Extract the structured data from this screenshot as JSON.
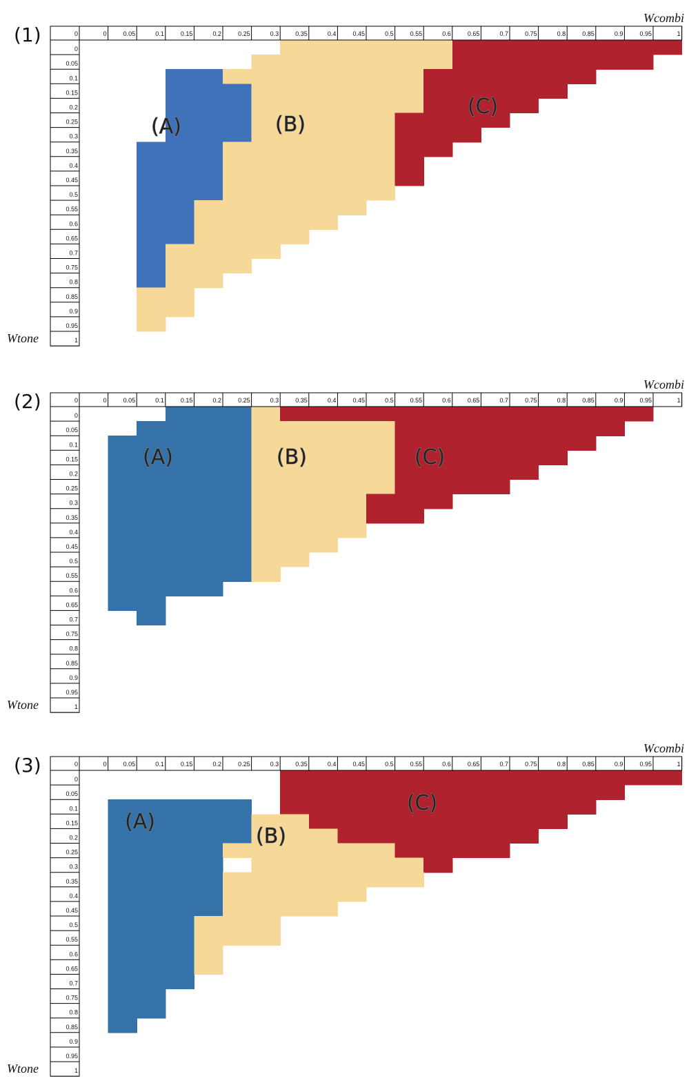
{
  "chart_data": [
    {
      "type": "heatmap",
      "title": "(1)",
      "xlabel": "Wcombi",
      "ylabel": "Wtone",
      "x_ticks": [
        "0",
        "0",
        "0.05",
        "0.1",
        "0.15",
        "0.2",
        "0.25",
        "0.3",
        "0.35",
        "0.4",
        "0.45",
        "0.5",
        "0.55",
        "0.6",
        "0.65",
        "0.7",
        "0.75",
        "0.8",
        "0.85",
        "0.9",
        "0.95",
        "1"
      ],
      "y_ticks": [
        "0",
        "0.05",
        "0.1",
        "0.15",
        "0.2",
        "0.25",
        "0.3",
        "0.35",
        "0.4",
        "0.45",
        "0.5",
        "0.55",
        "0.6",
        "0.65",
        "0.7",
        "0.75",
        "0.8",
        "0.85",
        "0.9",
        "0.95",
        "1"
      ],
      "region_labels": [
        "(A)",
        "(B)",
        "(C)"
      ],
      "region_colors": {
        "A": "#3f72b8",
        "B": "#f6d998",
        "C": "#b0232e"
      },
      "rows": [
        "       BBBBBBCCCCCCCC",
        "      BBBBBBBCCCCCCC ",
        "   AABBBBBBBCCCCCC   ",
        "   AAABBBBBBCCCCC    ",
        "   AAABBBBBBCCCC     ",
        "   AAABBBBBCCCC      ",
        "   AAABBBBBCCC       ",
        "  AAABBBBBBCC        ",
        "  AAABBBBBBC         ",
        "  AAABBBBBBC         ",
        "  AAABBBBBB          ",
        "  AABBBBBB           ",
        "  AABBBBB            ",
        "  AABBBB             ",
        "  ABBBB              ",
        "  ABBB               ",
        "  ABB                ",
        "  BB                 ",
        "  BB                 ",
        "  B                  ",
        "                     "
      ]
    },
    {
      "type": "heatmap",
      "title": "(2)",
      "xlabel": "Wcombi",
      "ylabel": "Wtone",
      "x_ticks": [
        "0",
        "0",
        "0.05",
        "0.1",
        "0.15",
        "0.2",
        "0.25",
        "0.3",
        "0.35",
        "0.4",
        "0.45",
        "0.5",
        "0.55",
        "0.6",
        "0.65",
        "0.7",
        "0.75",
        "0.8",
        "0.85",
        "0.9",
        "0.95",
        "1"
      ],
      "y_ticks": [
        "0",
        "0.05",
        "0.1",
        "0.15",
        "0.2",
        "0.25",
        "0.3",
        "0.35",
        "0.4",
        "0.45",
        "0.5",
        "0.55",
        "0.6",
        "0.65",
        "0.7",
        "0.75",
        "0.8",
        "0.85",
        "0.9",
        "0.95",
        "1"
      ],
      "region_labels": [
        "(A)",
        "(B)",
        "(C)"
      ],
      "region_colors": {
        "A": "#3472a9",
        "B": "#f6d998",
        "C": "#b0232e"
      },
      "rows": [
        "   AAABCCCCCCCCCCCCC ",
        "  AAAABBBBBCCCCCCCC  ",
        " AAAAABBBBBCCCCCCC   ",
        " AAAAABBBBBCCCCCC    ",
        " AAAAABBBBBCCCCC     ",
        " AAAAABBBBBCCCC      ",
        " AAAAABBBBCCC        ",
        " AAAAABBBBCC         ",
        " AAAAABBBB           ",
        " AAAAABBB            ",
        " AAAAABB             ",
        " AAAAAB              ",
        " AAAA                ",
        " AA                  ",
        "  A                  ",
        "                     ",
        "                     ",
        "                     ",
        "                     ",
        "                     ",
        "                     "
      ]
    },
    {
      "type": "heatmap",
      "title": "(3)",
      "xlabel": "Wcombi",
      "ylabel": "Wtone",
      "x_ticks": [
        "0",
        "0",
        "0.05",
        "0.1",
        "0.15",
        "0.2",
        "0.25",
        "0.3",
        "0.35",
        "0.4",
        "0.45",
        "0.5",
        "0.55",
        "0.6",
        "0.65",
        "0.7",
        "0.75",
        "0.8",
        "0.85",
        "0.9",
        "0.95",
        "1"
      ],
      "y_ticks": [
        "0",
        "0.05",
        "0.1",
        "0.15",
        "0.2",
        "0.25",
        "0.3",
        "0.35",
        "0.4",
        "0.45",
        "0.5",
        "0.55",
        "0.6",
        "0.65",
        "0.7",
        "0.75",
        "0.8",
        "0.85",
        "0.9",
        "0.95",
        "1"
      ],
      "region_labels": [
        "(A)",
        "(B)",
        "(C)"
      ],
      "region_colors": {
        "A": "#3472a9",
        "B": "#f6d998",
        "C": "#b0232e"
      },
      "rows": [
        "       CCCCCCCCCCCCCC",
        "       CCCCCCCCCCCC  ",
        " AAAAA CCCCCCCCCCC   ",
        " AAAAABBCCCCCCCCC    ",
        " AAAAABBBCCCCCCC     ",
        " AAAABBBBBBCCCC      ",
        " AAAA BBBBBBC        ",
        " AAAABBBBBBB         ",
        " AAAABBBBB           ",
        " AAAABBBB            ",
        " AAABBB              ",
        " AAABBB              ",
        " AAAB                ",
        " AAAB                ",
        " AAA                 ",
        " AA                  ",
        " AA                  ",
        " A                   ",
        "                     ",
        "                     ",
        "                     "
      ]
    }
  ]
}
